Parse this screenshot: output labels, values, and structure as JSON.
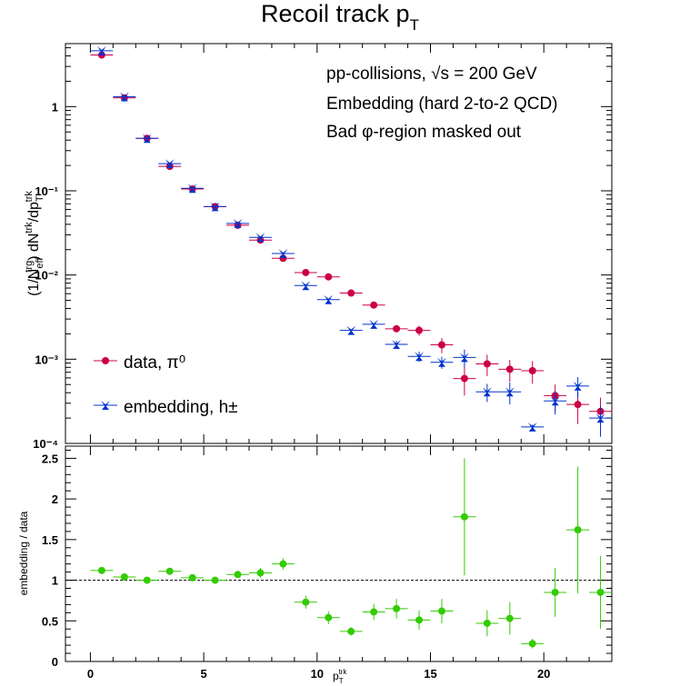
{
  "title": "Recoil track p_T",
  "annotations": {
    "line1": "pp-collisions, √s = 200 GeV",
    "line2": "Embedding (hard 2-to-2 QCD)",
    "line3": "Bad φ-region masked out"
  },
  "legend": {
    "data_label": "data, π⁰",
    "embedding_label": "embedding, h±"
  },
  "colors": {
    "data": "#cc0044",
    "embedding": "#0033cc",
    "ratio": "#33cc00"
  },
  "chart_data": [
    {
      "type": "scatter",
      "panel": "top",
      "ylabel": "(1/N_eff^trg) dN^trk/dp_T^trk",
      "xlabel": "",
      "yscale": "log",
      "xlim": [
        -1.1,
        23.0
      ],
      "ylim": [
        0.0001,
        5.6
      ],
      "ytick_labels": [
        "10⁻⁴",
        "10⁻³",
        "10⁻²",
        "10⁻¹",
        "1"
      ],
      "xerr": 0.5,
      "series": [
        {
          "name": "data, π⁰",
          "x": [
            0.5,
            1.5,
            2.5,
            3.5,
            4.5,
            5.5,
            6.5,
            7.5,
            8.5,
            9.5,
            10.5,
            11.5,
            12.5,
            13.5,
            14.5,
            15.5,
            16.5,
            17.5,
            18.5,
            19.5,
            20.5,
            21.5,
            22.5
          ],
          "y": [
            4.1,
            1.27,
            0.42,
            0.195,
            0.105,
            0.065,
            0.039,
            0.026,
            0.0158,
            0.0107,
            0.0095,
            0.0061,
            0.0044,
            0.0023,
            0.0022,
            0.00148,
            0.00059,
            0.00088,
            0.00076,
            0.00073,
            0.00037,
            0.00029,
            0.00024
          ],
          "yerr_lo": [
            0,
            0,
            0,
            0,
            0,
            0,
            0,
            0,
            0,
            0,
            0,
            0,
            0,
            0.0002,
            0.0003,
            0.0003,
            0.00022,
            0.00025,
            0.00022,
            0.00022,
            0.00013,
            0.00012,
            0.00011
          ],
          "yerr_hi": [
            0,
            0,
            0,
            0,
            0,
            0,
            0,
            0,
            0,
            0,
            0,
            0,
            0,
            0.0002,
            0.0003,
            0.0003,
            0.00022,
            0.00025,
            0.00022,
            0.00022,
            0.00013,
            0.00012,
            0.00011
          ]
        },
        {
          "name": "embedding, h±",
          "x": [
            0.5,
            1.5,
            2.5,
            3.5,
            4.5,
            5.5,
            6.5,
            7.5,
            8.5,
            9.5,
            10.5,
            11.5,
            12.5,
            13.5,
            14.5,
            15.5,
            16.5,
            17.5,
            18.5,
            19.5,
            20.5,
            21.5,
            22.5
          ],
          "y": [
            4.6,
            1.31,
            0.42,
            0.21,
            0.107,
            0.065,
            0.041,
            0.028,
            0.018,
            0.0075,
            0.0051,
            0.0022,
            0.0026,
            0.0015,
            0.00108,
            0.00092,
            0.00105,
            0.00041,
            0.00041,
            0.000157,
            0.00032,
            0.00048,
            0.0002
          ],
          "yerr_lo": [
            0,
            0,
            0,
            0,
            0,
            0,
            0,
            0,
            0,
            0,
            0,
            0,
            0,
            0.00015,
            0.00015,
            0.00015,
            0.00025,
            0.0001,
            0.00012,
            1e-05,
            0.0001,
            0.00013,
            8e-05
          ],
          "yerr_hi": [
            0,
            0,
            0,
            0,
            0,
            0,
            0,
            0,
            0,
            0,
            0,
            0,
            0,
            0.00015,
            0.00015,
            0.00015,
            0.00025,
            0.0001,
            0.00012,
            1e-05,
            0.0001,
            0.00013,
            8e-05
          ]
        }
      ]
    },
    {
      "type": "scatter",
      "panel": "bottom",
      "xlabel": "p_T^trk",
      "ylabel": "embedding / data",
      "xlim": [
        -1.1,
        23.0
      ],
      "ylim": [
        0,
        2.65
      ],
      "xticks": [
        0,
        5,
        10,
        15,
        20
      ],
      "yticks": [
        0,
        0.5,
        1,
        1.5,
        2,
        2.5
      ],
      "reference_line": 1,
      "xerr": 0.5,
      "series": [
        {
          "name": "embedding / data",
          "x": [
            0.5,
            1.5,
            2.5,
            3.5,
            4.5,
            5.5,
            6.5,
            7.5,
            8.5,
            9.5,
            10.5,
            11.5,
            12.5,
            13.5,
            14.5,
            15.5,
            16.5,
            17.5,
            18.5,
            19.5,
            20.5,
            21.5,
            22.5
          ],
          "y": [
            1.12,
            1.04,
            1.0,
            1.11,
            1.03,
            1.0,
            1.07,
            1.09,
            1.2,
            0.73,
            0.54,
            0.37,
            0.61,
            0.65,
            0.51,
            0.62,
            1.78,
            0.47,
            0.53,
            0.22,
            0.85,
            1.62,
            0.85
          ],
          "yerr_lo": [
            0.02,
            0.02,
            0.02,
            0.02,
            0.02,
            0.02,
            0.03,
            0.06,
            0.07,
            0.08,
            0.08,
            0.05,
            0.1,
            0.12,
            0.12,
            0.15,
            0.72,
            0.16,
            0.2,
            0.06,
            0.3,
            0.78,
            0.45
          ],
          "yerr_hi": [
            0.02,
            0.02,
            0.02,
            0.02,
            0.02,
            0.02,
            0.03,
            0.06,
            0.07,
            0.08,
            0.08,
            0.05,
            0.1,
            0.12,
            0.12,
            0.15,
            0.72,
            0.16,
            0.2,
            0.06,
            0.3,
            0.78,
            0.45
          ]
        }
      ]
    }
  ]
}
